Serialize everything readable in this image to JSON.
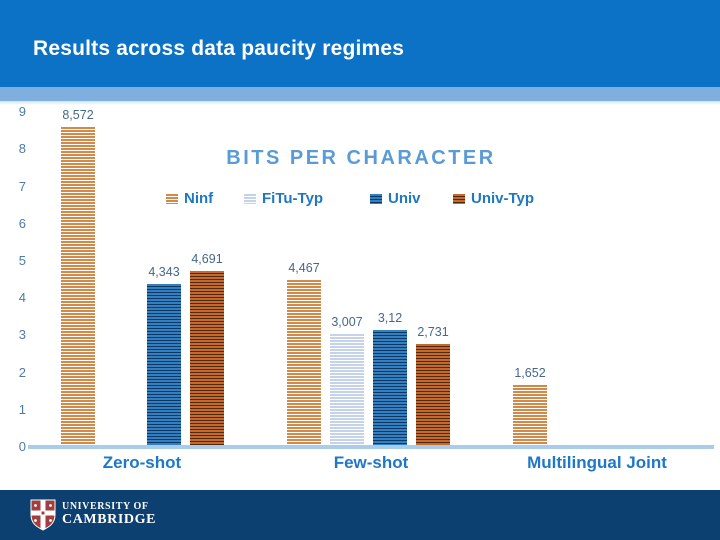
{
  "slide": {
    "title": "Results across data paucity regimes",
    "footer": {
      "org_line1": "UNIVERSITY OF",
      "org_line2": "CAMBRIDGE"
    }
  },
  "chart_data": {
    "type": "bar",
    "title": "BITS PER CHARACTER",
    "categories": [
      "Zero-shot",
      "Few-shot",
      "Multilingual Joint"
    ],
    "series": [
      {
        "name": "Ninf",
        "color": "#d3894a",
        "stripe": "#ffffff",
        "values": [
          8.572,
          4.467,
          1.652
        ],
        "labels": [
          "8,572",
          "4,467",
          "1,652"
        ]
      },
      {
        "name": "FiTu-Typ",
        "color": "#c4d3e9",
        "stripe": "#ffffff",
        "values": [
          null,
          3.007,
          null
        ],
        "labels": [
          null,
          "3,007",
          null
        ]
      },
      {
        "name": "Univ",
        "color": "#3080c4",
        "stripe": "#14365c",
        "values": [
          4.343,
          3.12,
          null
        ],
        "labels": [
          "4,343",
          "3,12",
          null
        ]
      },
      {
        "name": "Univ-Typ",
        "color": "#c56a2e",
        "stripe": "#4f2a10",
        "values": [
          4.691,
          2.731,
          null
        ],
        "labels": [
          "4,691",
          "2,731",
          null
        ]
      }
    ],
    "xlabel": "",
    "ylabel": "",
    "ylim": [
      0,
      9
    ],
    "yticks": [
      "0",
      "1",
      "2",
      "3",
      "4",
      "5",
      "6",
      "7",
      "8",
      "9"
    ],
    "grid": false,
    "legend_position": "top"
  },
  "colors": {
    "header_bg": "#0b72c6",
    "header_strip": "#7fafdf",
    "chart_title_text": "#5b9bd5",
    "axis_text": "#4d7ba6",
    "category_text": "#1e78c8",
    "legend_text": "#1f78c0",
    "data_label_text": "#44678c",
    "baseline": "#a9ccea",
    "footer_bg": "#0c4070",
    "crest_red": "#a33e3e"
  }
}
